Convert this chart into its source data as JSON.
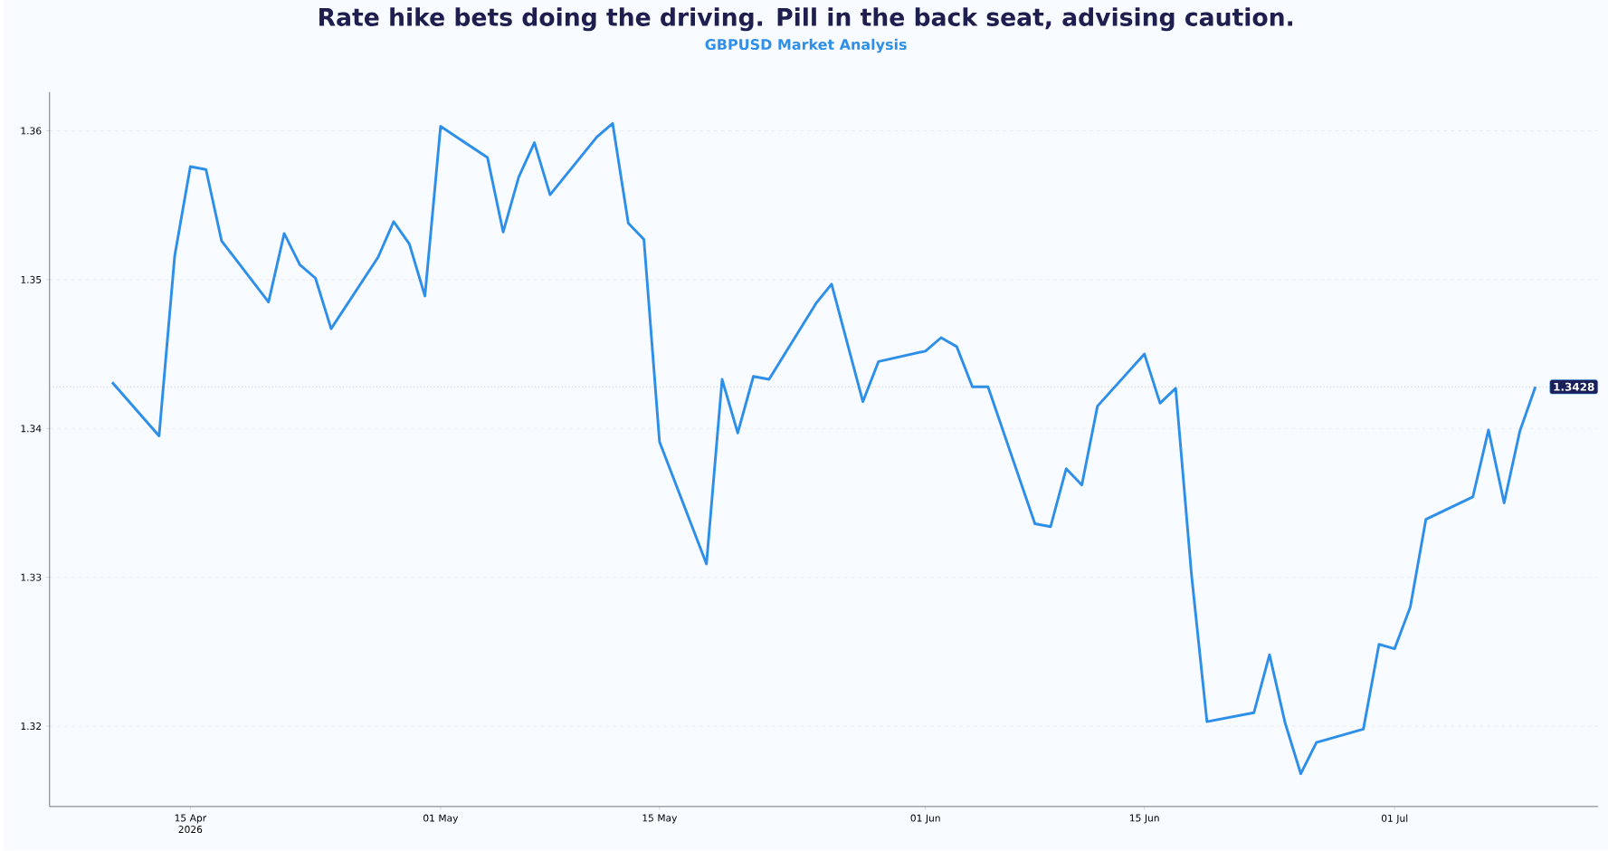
{
  "chart_data": {
    "type": "line",
    "title": "Rate hike bets doing the driving. Pill in the back seat, advising caution.",
    "subtitle": "GBPUSD Market Analysis",
    "x": [
      "2026-04-10",
      "2026-04-13",
      "2026-04-14",
      "2026-04-15",
      "2026-04-16",
      "2026-04-17",
      "2026-04-20",
      "2026-04-21",
      "2026-04-22",
      "2026-04-23",
      "2026-04-24",
      "2026-04-27",
      "2026-04-28",
      "2026-04-29",
      "2026-04-30",
      "2026-05-01",
      "2026-05-04",
      "2026-05-05",
      "2026-05-06",
      "2026-05-07",
      "2026-05-08",
      "2026-05-11",
      "2026-05-12",
      "2026-05-13",
      "2026-05-14",
      "2026-05-15",
      "2026-05-18",
      "2026-05-19",
      "2026-05-20",
      "2026-05-21",
      "2026-05-22",
      "2026-05-25",
      "2026-05-26",
      "2026-05-28",
      "2026-05-29",
      "2026-06-01",
      "2026-06-02",
      "2026-06-03",
      "2026-06-04",
      "2026-06-05",
      "2026-06-08",
      "2026-06-09",
      "2026-06-10",
      "2026-06-11",
      "2026-06-12",
      "2026-06-15",
      "2026-06-16",
      "2026-06-17",
      "2026-06-18",
      "2026-06-19",
      "2026-06-22",
      "2026-06-23",
      "2026-06-24",
      "2026-06-25",
      "2026-06-26",
      "2026-06-29",
      "2026-06-30",
      "2026-07-01",
      "2026-07-02",
      "2026-07-03",
      "2026-07-06",
      "2026-07-07",
      "2026-07-08",
      "2026-07-09",
      "2026-07-10"
    ],
    "series": [
      {
        "color": "#2e8fe8",
        "values": [
          1.3431,
          1.3395,
          1.3516,
          1.3576,
          1.3574,
          1.3526,
          1.3485,
          1.3531,
          1.351,
          1.3501,
          1.3467,
          1.3515,
          1.3539,
          1.3524,
          1.3489,
          1.3603,
          1.3582,
          1.3532,
          1.3569,
          1.3592,
          1.3557,
          1.3596,
          1.3605,
          1.3538,
          1.3527,
          1.3391,
          1.3309,
          1.3433,
          1.3397,
          1.3435,
          1.3433,
          1.3484,
          1.3497,
          1.3418,
          1.3445,
          1.3452,
          1.3461,
          1.3455,
          1.3428,
          1.3428,
          1.3336,
          1.3334,
          1.3373,
          1.3362,
          1.3415,
          1.345,
          1.3417,
          1.3427,
          1.3303,
          1.3203,
          1.3209,
          1.3248,
          1.3202,
          1.3168,
          1.3189,
          1.3198,
          1.3255,
          1.3252,
          1.328,
          1.3339,
          1.3354,
          1.3399,
          1.335,
          1.3398,
          1.3428
        ]
      }
    ],
    "xlim": [
      "2026-04-06",
      "2026-07-14"
    ],
    "xticks": [
      {
        "value": "2026-04-15",
        "label": "15 Apr 2026"
      },
      {
        "value": "2026-05-01",
        "label": "01 May"
      },
      {
        "value": "2026-05-15",
        "label": "15 May"
      },
      {
        "value": "2026-06-01",
        "label": "01 Jun"
      },
      {
        "value": "2026-06-15",
        "label": "15 Jun"
      },
      {
        "value": "2026-07-01",
        "label": "01 Jul"
      }
    ],
    "ylim": [
      1.3146,
      1.3626
    ],
    "yticks": [
      1.32,
      1.33,
      1.34,
      1.35,
      1.36
    ],
    "grid": "y",
    "line_style": "solid",
    "ref_lines": [
      {
        "axis": "y",
        "value": 1.3428,
        "label": "1.3428",
        "line_style": "dotted",
        "color": "#c8c8c8"
      }
    ]
  }
}
